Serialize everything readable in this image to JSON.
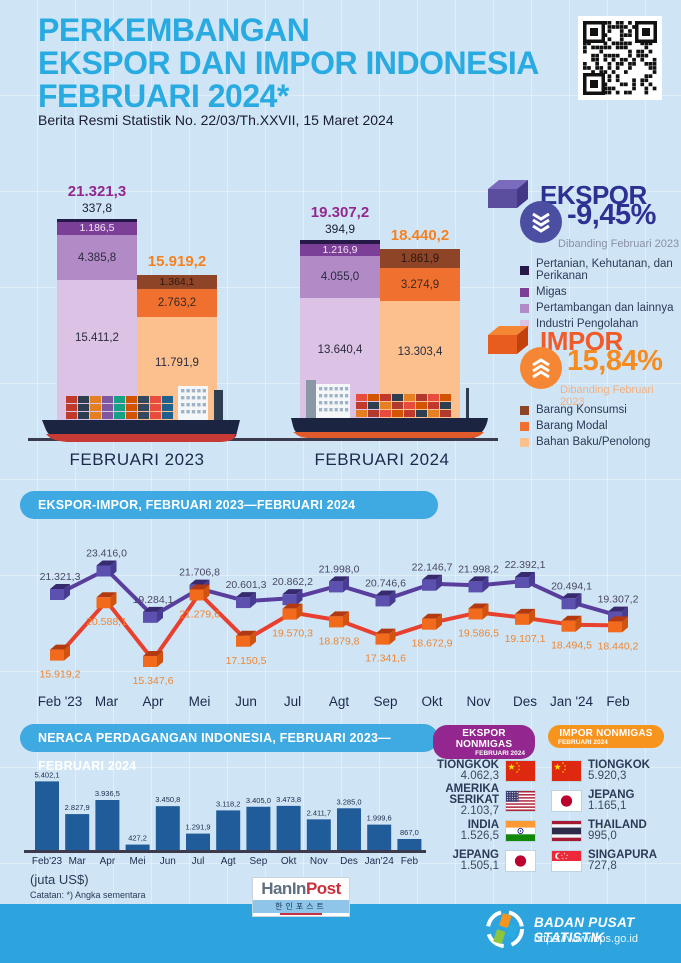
{
  "header": {
    "title_lines": [
      "PERKEMBANGAN",
      "EKSPOR DAN IMPOR INDONESIA",
      "FEBRUARI 2024*"
    ],
    "subtitle": "Berita Resmi Statistik No. 22/03/Th.XXVII, 15 Maret 2024"
  },
  "summary": {
    "ekspor": {
      "label": "EKSPOR",
      "change": "-9,45%",
      "compare_note": "Dibanding Februari 2023",
      "direction": "down",
      "accent": "#2E3192",
      "circle_color": "#4C4FA1",
      "note_color": "#8A90A8",
      "legend": [
        {
          "label": "Pertanian, Kehutanan, dan Perikanan",
          "color": "#251A47"
        },
        {
          "label": "Migas",
          "color": "#7C3F98"
        },
        {
          "label": "Pertambangan dan lainnya",
          "color": "#B28BC6"
        },
        {
          "label": "Industri Pengolahan",
          "color": "#DCC3E5"
        }
      ]
    },
    "impor": {
      "label": "IMPOR",
      "change": "15,84%",
      "compare_note": "Dibanding Februari 2023",
      "direction": "up",
      "accent": "#F15A29",
      "circle_color": "#F58634",
      "note_color": "#F5AF7E",
      "legend": [
        {
          "label": "Barang Konsumsi",
          "color": "#8E4427"
        },
        {
          "label": "Barang Modal",
          "color": "#F07030"
        },
        {
          "label": "Bahan Baku/Penolong",
          "color": "#FBC08D"
        }
      ]
    }
  },
  "section_headers": {
    "line_chart": "EKSPOR-IMPOR, FEBRUARI 2023—FEBRUARI 2024",
    "neraca": "NERACA PERDAGANGAN INDONESIA, FEBRUARI 2023—FEBRUARI 2024"
  },
  "chart_data": [
    {
      "id": "ekspor-impor-stacked-bars",
      "type": "bar",
      "subtype": "stacked-grouped",
      "unit": "juta US$",
      "total_colors": {
        "ekspor": "#93278F",
        "impor": "#F58220"
      },
      "groups": [
        {
          "label": "FEBRUARI 2023",
          "bars": [
            {
              "name": "ekspor",
              "total": 21321.3,
              "total_display": "21.321,3",
              "segments": [
                {
                  "label": "Industri Pengolahan",
                  "value": 15411.2,
                  "display": "15.411,2",
                  "color": "#DCC3E5",
                  "text": "#2B2B40"
                },
                {
                  "label": "Pertambangan dan lainnya",
                  "value": 4385.8,
                  "display": "4.385,8",
                  "color": "#B28BC6",
                  "text": "#2B2B40"
                },
                {
                  "label": "Migas",
                  "value": 1186.5,
                  "display": "1.186,5",
                  "color": "#7C3F98",
                  "text": "#F2E6F5"
                },
                {
                  "label": "Pertanian, Kehutanan, dan Perikanan",
                  "value": 337.8,
                  "display": "337,8",
                  "color": "#251A47",
                  "text": "#ffffff",
                  "label_outside": true
                }
              ]
            },
            {
              "name": "impor",
              "total": 15919.2,
              "total_display": "15.919,2",
              "segments": [
                {
                  "label": "Bahan Baku/Penolong",
                  "value": 11791.9,
                  "display": "11.791,9",
                  "color": "#FBC08D",
                  "text": "#2B2B40"
                },
                {
                  "label": "Barang Modal",
                  "value": 2763.2,
                  "display": "2.763,2",
                  "color": "#F07030",
                  "text": "#3A2A20"
                },
                {
                  "label": "Barang Konsumsi",
                  "value": 1364.1,
                  "display": "1.364,1",
                  "color": "#8E4427",
                  "text": "#2E1810"
                }
              ]
            }
          ]
        },
        {
          "label": "FEBRUARI 2024",
          "bars": [
            {
              "name": "ekspor",
              "total": 19307.2,
              "total_display": "19.307,2",
              "segments": [
                {
                  "label": "Industri Pengolahan",
                  "value": 13640.4,
                  "display": "13.640,4",
                  "color": "#DCC3E5",
                  "text": "#2B2B40"
                },
                {
                  "label": "Pertambangan dan lainnya",
                  "value": 4055.0,
                  "display": "4.055,0",
                  "color": "#B28BC6",
                  "text": "#2B2B40"
                },
                {
                  "label": "Migas",
                  "value": 1216.9,
                  "display": "1.216,9",
                  "color": "#7C3F98",
                  "text": "#F2E6F5"
                },
                {
                  "label": "Pertanian, Kehutanan, dan Perikanan",
                  "value": 394.9,
                  "display": "394,9",
                  "color": "#251A47",
                  "text": "#ffffff",
                  "label_outside": true
                }
              ]
            },
            {
              "name": "impor",
              "total": 18440.2,
              "total_display": "18.440,2",
              "segments": [
                {
                  "label": "Bahan Baku/Penolong",
                  "value": 13303.4,
                  "display": "13.303,4",
                  "color": "#FBC08D",
                  "text": "#2B2B40"
                },
                {
                  "label": "Barang Modal",
                  "value": 3274.9,
                  "display": "3.274,9",
                  "color": "#F07030",
                  "text": "#3A2A20"
                },
                {
                  "label": "Barang Konsumsi",
                  "value": 1861.9,
                  "display": "1.861,9",
                  "color": "#8E4427",
                  "text": "#2E1810"
                }
              ]
            }
          ]
        }
      ]
    },
    {
      "id": "ekspor-impor-monthly-line",
      "type": "line",
      "title": "EKSPOR-IMPOR, FEBRUARI 2023—FEBRUARI 2024",
      "unit": "juta US$",
      "categories": [
        "Feb '23",
        "Mar",
        "Apr",
        "Mei",
        "Jun",
        "Jul",
        "Agt",
        "Sep",
        "Okt",
        "Nov",
        "Des",
        "Jan '24",
        "Feb"
      ],
      "series": [
        {
          "name": "Ekspor",
          "line_color": "#5A3E9E",
          "cube": {
            "top": "#372A6E",
            "front": "#5D51B0",
            "side": "#473C92"
          },
          "label_color": "#4A4763",
          "label_pos": "above",
          "values": [
            21321.3,
            23416.0,
            19284.1,
            21706.8,
            20601.3,
            20862.2,
            21998.0,
            20746.6,
            22146.7,
            21998.2,
            22392.1,
            20494.1,
            19307.2
          ],
          "labels": [
            "21.321,3",
            "23.416,0",
            "19.284,1",
            "21.706,8",
            "20.601,3",
            "20.862,2",
            "21.998,0",
            "20.746,6",
            "22.146,7",
            "21.998,2",
            "22.392,1",
            "20.494,1",
            "19.307,2"
          ]
        },
        {
          "name": "Impor",
          "line_color": "#E8402F",
          "cube": {
            "top": "#B33A10",
            "front": "#F26A1B",
            "side": "#D0540F"
          },
          "label_color": "#EF8632",
          "label_pos": "below",
          "values": [
            15919.2,
            20588.1,
            15347.6,
            21279.6,
            17150.5,
            19570.3,
            18879.8,
            17341.6,
            18672.9,
            19586.5,
            19107.1,
            18494.5,
            18440.2
          ],
          "labels": [
            "15.919,2",
            "20.588,1",
            "15.347,6",
            "21.279,6",
            "17.150,5",
            "19.570,3",
            "18.879,8",
            "17.341,6",
            "18.672,9",
            "19.586,5",
            "19.107,1",
            "18.494,5",
            "18.440,2"
          ]
        }
      ]
    },
    {
      "id": "neraca-perdagangan-bar",
      "type": "bar",
      "title": "NERACA PERDAGANGAN INDONESIA, FEBRUARI 2023—FEBRUARI 2024",
      "bar_color": "#1F5C99",
      "categories": [
        "Feb'23",
        "Mar",
        "Apr",
        "Mei",
        "Jun",
        "Jul",
        "Agt",
        "Sep",
        "Okt",
        "Nov",
        "Des",
        "Jan'24",
        "Feb"
      ],
      "values": [
        5402.1,
        2827.9,
        3936.5,
        427.2,
        3450.8,
        1291.9,
        3118.2,
        3405.0,
        3473.8,
        2411.7,
        3285.0,
        1999.6,
        867.0
      ],
      "labels": [
        "5.402,1",
        "2.827,9",
        "3.936,5",
        "427,2",
        "3.450,8",
        "1.291,9",
        "3.118,2",
        "3.405,0",
        "3.473,8",
        "2.411,7",
        "3.285,0",
        "1.999,6",
        "867,0"
      ],
      "unit_note": "(juta US$)",
      "footnote": "Catatan: *) Angka sementara"
    }
  ],
  "nonmigas": {
    "ekspor": {
      "title": "EKSPOR NONMIGAS",
      "subtitle": "FEBRUARI 2024",
      "pill_color": "#93278F",
      "rows": [
        {
          "country": "TIONGKOK",
          "value": "4.062,3",
          "flag": "china"
        },
        {
          "country": "AMERIKA SERIKAT",
          "value": "2.103,7",
          "flag": "usa"
        },
        {
          "country": "INDIA",
          "value": "1.526,5",
          "flag": "india"
        },
        {
          "country": "JEPANG",
          "value": "1.505,1",
          "flag": "japan"
        }
      ]
    },
    "impor": {
      "title": "IMPOR NONMIGAS",
      "subtitle": "FEBRUARI 2024",
      "pill_color": "#F7941E",
      "rows": [
        {
          "country": "TIONGKOK",
          "value": "5.920,3",
          "flag": "china"
        },
        {
          "country": "JEPANG",
          "value": "1.165,1",
          "flag": "japan"
        },
        {
          "country": "THAILAND",
          "value": "995,0",
          "flag": "thailand"
        },
        {
          "country": "SINGAPURA",
          "value": "727,8",
          "flag": "singapore"
        }
      ]
    }
  },
  "watermark": {
    "brand1": "HanIn",
    "brand2": "Post",
    "korean": "한인포스트"
  },
  "footer": {
    "org": "BADAN PUSAT STATISTIK",
    "url": "https://www.bps.go.id"
  }
}
